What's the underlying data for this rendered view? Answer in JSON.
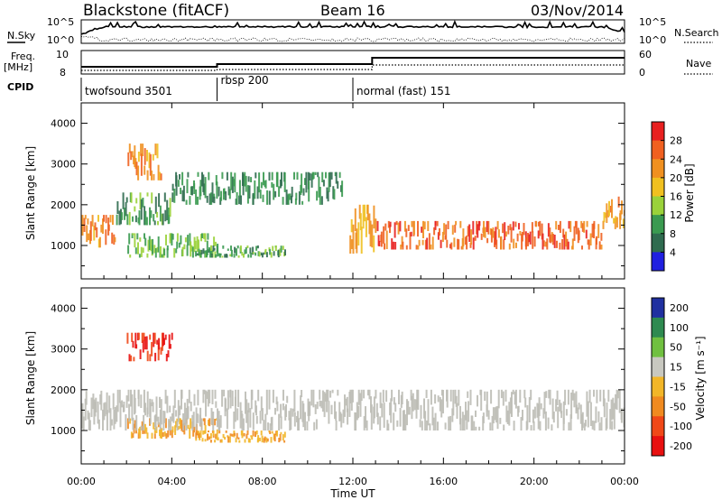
{
  "header": {
    "title": "Blackstone (fitACF)",
    "beam": "Beam 16",
    "date": "03/Nov/2014"
  },
  "meta_panels": {
    "left_labels": {
      "nsky": "N.Sky",
      "freq": "Freq.",
      "mhz": "[MHz]",
      "cpid": "CPID"
    },
    "right_labels": {
      "nsearch": "N.Search",
      "nave": "Nave"
    },
    "noise_ticks_left": [
      "10^5",
      "10^0"
    ],
    "noise_ticks_right": [
      "10^5",
      "10^0"
    ],
    "freq_ticks": [
      "10",
      "8"
    ],
    "nave_ticks": [
      "60",
      "0"
    ],
    "cpid_segments": [
      {
        "label": "twofsound 3501",
        "start_hour": 0
      },
      {
        "label": "rbsp 200",
        "start_hour": 6
      },
      {
        "label": "normal (fast) 151",
        "start_hour": 12
      }
    ]
  },
  "colors": {
    "power_scale": [
      "#2020e0",
      "#2f6b4f",
      "#3a9a50",
      "#9ad23a",
      "#f0c020",
      "#f09020",
      "#f06020",
      "#e82020"
    ],
    "velocity_scale": [
      "#e81010",
      "#f04818",
      "#f08a20",
      "#f2b628",
      "#c8c8c0",
      "#70c040",
      "#2e8a50",
      "#2030a0"
    ],
    "ground_scatter": "#bdbdb5"
  },
  "chart_data": [
    {
      "type": "heatmap",
      "panel": "power",
      "ylabel": "Slant Range [km]",
      "ylim": [
        180,
        4500
      ],
      "yticks": [
        "1000",
        "2000",
        "3000",
        "4000"
      ],
      "xlim_hours": [
        0,
        24
      ],
      "colorbar": {
        "label": "Power [dB]",
        "ticks": [
          "4",
          "8",
          "12",
          "16",
          "20",
          "24",
          "28"
        ],
        "range": [
          0,
          32
        ]
      },
      "bands": [
        {
          "hours": [
            0,
            1.5
          ],
          "range_km": [
            950,
            1750
          ],
          "power_db": 22
        },
        {
          "hours": [
            1.5,
            4
          ],
          "range_km": [
            1500,
            2300
          ],
          "power_db": 10
        },
        {
          "hours": [
            2,
            3.5
          ],
          "range_km": [
            2600,
            3500
          ],
          "power_db": 22
        },
        {
          "hours": [
            2,
            6
          ],
          "range_km": [
            700,
            1300
          ],
          "power_db": 12
        },
        {
          "hours": [
            4,
            11.5
          ],
          "range_km": [
            2000,
            2800
          ],
          "power_db": 8
        },
        {
          "hours": [
            5,
            9
          ],
          "range_km": [
            700,
            1000
          ],
          "power_db": 10
        },
        {
          "hours": [
            11.8,
            13
          ],
          "range_km": [
            800,
            2000
          ],
          "power_db": 20
        },
        {
          "hours": [
            13,
            23
          ],
          "range_km": [
            900,
            1600
          ],
          "power_db": 26
        },
        {
          "hours": [
            23,
            24
          ],
          "range_km": [
            1400,
            2200
          ],
          "power_db": 22
        }
      ]
    },
    {
      "type": "heatmap",
      "panel": "velocity",
      "ylabel": "Slant Range [km]",
      "xlabel": "Time UT",
      "ylim": [
        180,
        4500
      ],
      "yticks": [
        "1000",
        "2000",
        "3000",
        "4000"
      ],
      "xticks": [
        "00:00",
        "04:00",
        "08:00",
        "12:00",
        "16:00",
        "20:00",
        "00:00"
      ],
      "xlim_hours": [
        0,
        24
      ],
      "colorbar": {
        "label": "Velocity [m s⁻¹]",
        "ticks": [
          "200",
          "100",
          "50",
          "15",
          "-15",
          "-50",
          "-100",
          "-200"
        ]
      },
      "bands": [
        {
          "hours": [
            2,
            4
          ],
          "range_km": [
            2700,
            3400
          ],
          "velocity": -200
        },
        {
          "hours": [
            2,
            6
          ],
          "range_km": [
            800,
            1300
          ],
          "velocity": -50
        },
        {
          "hours": [
            5,
            9
          ],
          "range_km": [
            700,
            1000
          ],
          "velocity": -50
        },
        {
          "hours": [
            0,
            24
          ],
          "range_km": [
            1000,
            2000
          ],
          "velocity": 0,
          "ground_scatter": true
        }
      ]
    }
  ],
  "time_axis_label": "Time UT"
}
